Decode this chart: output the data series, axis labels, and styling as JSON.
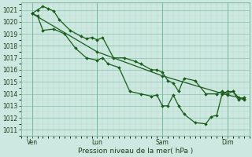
{
  "background_color": "#cce8e0",
  "grid_color_major": "#7ab89a",
  "grid_color_minor": "#a0cdb0",
  "line_color": "#1a5c1a",
  "xlabel": "Pression niveau de la mer( hPa )",
  "ylabel_values": [
    1011,
    1012,
    1013,
    1014,
    1015,
    1016,
    1017,
    1018,
    1019,
    1020,
    1021
  ],
  "ylim": [
    1010.6,
    1021.6
  ],
  "x_tick_labels": [
    "Ven",
    "Lun",
    "Sam",
    "Dim"
  ],
  "x_tick_positions": [
    1,
    7,
    13,
    19
  ],
  "xlim": [
    0,
    21
  ],
  "line1_x": [
    1,
    1.5,
    2,
    2.5,
    3,
    3.5,
    4.5,
    5.5,
    6,
    6.5,
    7,
    7.5,
    8.5,
    9.5,
    10.5,
    11,
    12,
    12.5,
    13,
    13.5,
    14,
    14.5,
    15,
    16,
    17,
    18,
    18.5,
    19,
    19.5,
    20,
    20.5
  ],
  "line1_y": [
    1020.7,
    1021.0,
    1021.3,
    1021.1,
    1020.9,
    1020.2,
    1019.3,
    1018.8,
    1018.6,
    1018.7,
    1018.5,
    1018.7,
    1017.0,
    1017.0,
    1016.7,
    1016.5,
    1016.0,
    1016.0,
    1015.8,
    1015.1,
    1014.9,
    1014.2,
    1015.3,
    1015.1,
    1014.0,
    1014.0,
    1014.2,
    1014.0,
    1014.2,
    1013.7,
    1013.5
  ],
  "line2_x": [
    1,
    1.5,
    2,
    3,
    4,
    5,
    6,
    7,
    7.5,
    8,
    9,
    10,
    11,
    12,
    12.5,
    13,
    13.5,
    14,
    14.5,
    15,
    16,
    17,
    17.5,
    18,
    18.5,
    19,
    19.5,
    20,
    20.5
  ],
  "line2_y": [
    1020.7,
    1020.5,
    1019.3,
    1019.4,
    1019.0,
    1017.8,
    1017.0,
    1016.8,
    1017.0,
    1016.5,
    1016.2,
    1014.2,
    1014.0,
    1013.8,
    1013.9,
    1013.0,
    1013.0,
    1013.9,
    1013.0,
    1012.3,
    1011.6,
    1011.5,
    1012.1,
    1012.2,
    1014.0,
    1014.2,
    1014.2,
    1013.5,
    1013.7
  ],
  "line3_x": [
    1,
    7,
    13,
    19,
    20.5
  ],
  "line3_y": [
    1020.7,
    1017.5,
    1015.5,
    1013.9,
    1013.6
  ],
  "marker_size": 2.0,
  "linewidth": 0.9,
  "tick_fontsize": 5.5,
  "xlabel_fontsize": 6.5
}
